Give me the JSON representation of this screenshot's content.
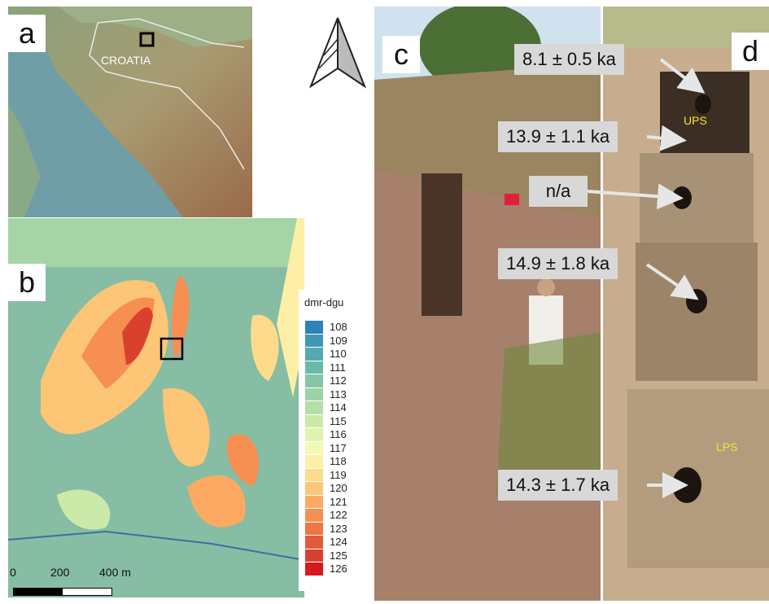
{
  "panel_letters": {
    "a": "a",
    "b": "b",
    "c": "c",
    "d": "d"
  },
  "map_a": {
    "country_label": "CROATIA"
  },
  "legend": {
    "title": "dmr-dgu",
    "entries": [
      {
        "value": "108",
        "color": "#2b83ba"
      },
      {
        "value": "109",
        "color": "#3f97b4"
      },
      {
        "value": "110",
        "color": "#56a9ae"
      },
      {
        "value": "111",
        "color": "#6bbaa8"
      },
      {
        "value": "112",
        "color": "#83c7a5"
      },
      {
        "value": "113",
        "color": "#9bd3a4"
      },
      {
        "value": "114",
        "color": "#b4dfa5"
      },
      {
        "value": "115",
        "color": "#cbe9a8"
      },
      {
        "value": "116",
        "color": "#e0f3ad"
      },
      {
        "value": "117",
        "color": "#f3f9b5"
      },
      {
        "value": "118",
        "color": "#fdefa6"
      },
      {
        "value": "119",
        "color": "#fedb8b"
      },
      {
        "value": "120",
        "color": "#fdc576"
      },
      {
        "value": "121",
        "color": "#fcaa62"
      },
      {
        "value": "122",
        "color": "#f78f52"
      },
      {
        "value": "123",
        "color": "#ef7446"
      },
      {
        "value": "124",
        "color": "#e35a3a"
      },
      {
        "value": "125",
        "color": "#d9412e"
      },
      {
        "value": "126",
        "color": "#d7191c"
      }
    ]
  },
  "scalebar": {
    "ticks": [
      "0",
      "200",
      "400 m"
    ]
  },
  "ages": {
    "l1": "8.1 ± 0.5 ka",
    "l2": "13.9 ± 1.1 ka",
    "l3": "n/a",
    "l4": "14.9 ± 1.8 ka",
    "l5": "14.3 ± 1.7 ka"
  },
  "units": {
    "ups": "UPS",
    "lps": "LPS"
  }
}
